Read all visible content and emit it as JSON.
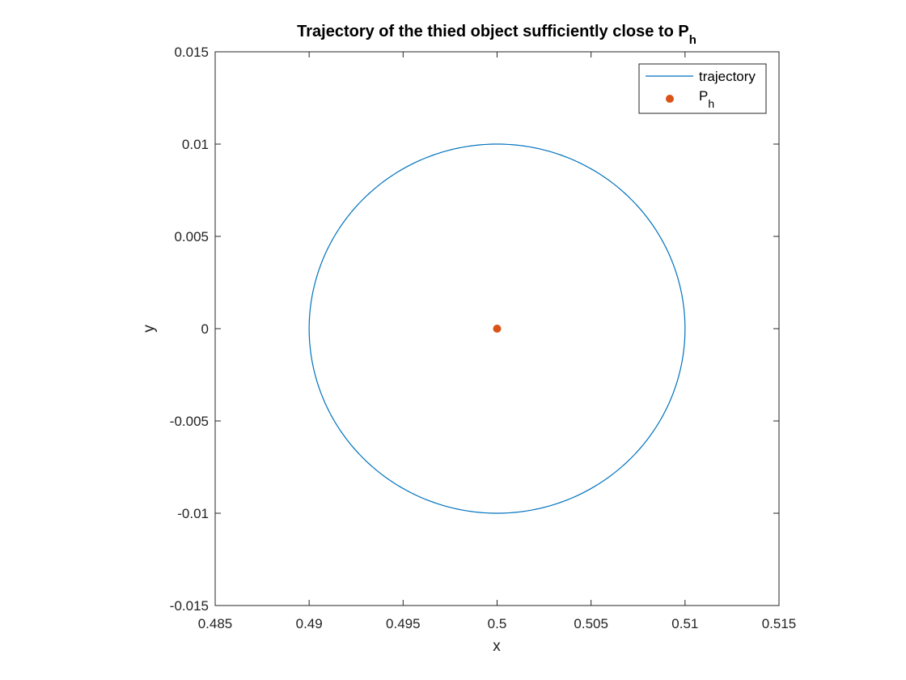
{
  "chart_data": {
    "type": "line",
    "title": "Trajectory of the thied object sufficiently close to P",
    "title_subscript": "h",
    "xlabel": "x",
    "ylabel": "y",
    "xlim": [
      0.485,
      0.515
    ],
    "ylim": [
      -0.015,
      0.015
    ],
    "xticks": [
      0.485,
      0.49,
      0.495,
      0.5,
      0.505,
      0.51,
      0.515
    ],
    "xtick_labels": [
      "0.485",
      "0.49",
      "0.495",
      "0.5",
      "0.505",
      "0.51",
      "0.515"
    ],
    "yticks": [
      -0.015,
      -0.01,
      -0.005,
      0,
      0.005,
      0.01,
      0.015
    ],
    "ytick_labels": [
      "-0.015",
      "-0.01",
      "-0.005",
      "0",
      "0.005",
      "0.01",
      "0.015"
    ],
    "grid": false,
    "legend_position": "top-right",
    "series": [
      {
        "name": "trajectory",
        "kind": "line",
        "color": "#0072BD",
        "shape": "circle",
        "center": [
          0.5,
          0
        ],
        "radius": 0.01
      },
      {
        "name": "P",
        "name_subscript": "h",
        "kind": "scatter",
        "color": "#D95319",
        "points": [
          [
            0.5,
            0
          ]
        ]
      }
    ]
  }
}
